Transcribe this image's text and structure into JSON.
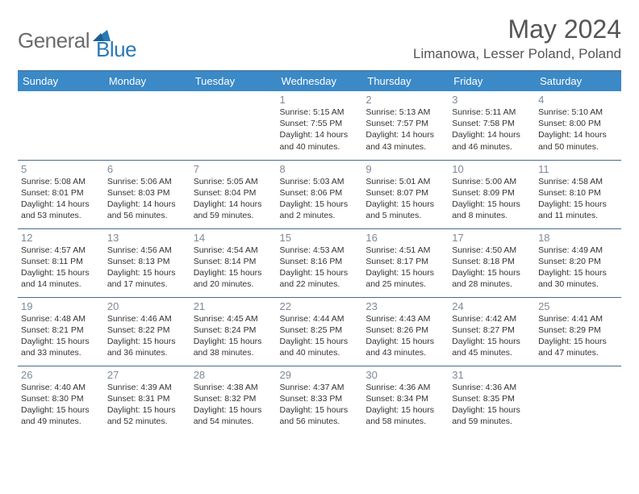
{
  "logo": {
    "text1": "General",
    "text2": "Blue"
  },
  "title": "May 2024",
  "location": "Limanowa, Lesser Poland, Poland",
  "colors": {
    "header_bg": "#3b89c7",
    "header_text": "#ffffff",
    "daynum": "#7d8a97",
    "border": "#4a6a8a",
    "logo_gray": "#6b6b6b",
    "logo_blue": "#2a7ab8",
    "title_color": "#555555",
    "body_text": "#333333",
    "page_bg": "#ffffff"
  },
  "daysOfWeek": [
    "Sunday",
    "Monday",
    "Tuesday",
    "Wednesday",
    "Thursday",
    "Friday",
    "Saturday"
  ],
  "weeks": [
    [
      null,
      null,
      null,
      {
        "n": "1",
        "sr": "5:15 AM",
        "ss": "7:55 PM",
        "dl": "14 hours and 40 minutes."
      },
      {
        "n": "2",
        "sr": "5:13 AM",
        "ss": "7:57 PM",
        "dl": "14 hours and 43 minutes."
      },
      {
        "n": "3",
        "sr": "5:11 AM",
        "ss": "7:58 PM",
        "dl": "14 hours and 46 minutes."
      },
      {
        "n": "4",
        "sr": "5:10 AM",
        "ss": "8:00 PM",
        "dl": "14 hours and 50 minutes."
      }
    ],
    [
      {
        "n": "5",
        "sr": "5:08 AM",
        "ss": "8:01 PM",
        "dl": "14 hours and 53 minutes."
      },
      {
        "n": "6",
        "sr": "5:06 AM",
        "ss": "8:03 PM",
        "dl": "14 hours and 56 minutes."
      },
      {
        "n": "7",
        "sr": "5:05 AM",
        "ss": "8:04 PM",
        "dl": "14 hours and 59 minutes."
      },
      {
        "n": "8",
        "sr": "5:03 AM",
        "ss": "8:06 PM",
        "dl": "15 hours and 2 minutes."
      },
      {
        "n": "9",
        "sr": "5:01 AM",
        "ss": "8:07 PM",
        "dl": "15 hours and 5 minutes."
      },
      {
        "n": "10",
        "sr": "5:00 AM",
        "ss": "8:09 PM",
        "dl": "15 hours and 8 minutes."
      },
      {
        "n": "11",
        "sr": "4:58 AM",
        "ss": "8:10 PM",
        "dl": "15 hours and 11 minutes."
      }
    ],
    [
      {
        "n": "12",
        "sr": "4:57 AM",
        "ss": "8:11 PM",
        "dl": "15 hours and 14 minutes."
      },
      {
        "n": "13",
        "sr": "4:56 AM",
        "ss": "8:13 PM",
        "dl": "15 hours and 17 minutes."
      },
      {
        "n": "14",
        "sr": "4:54 AM",
        "ss": "8:14 PM",
        "dl": "15 hours and 20 minutes."
      },
      {
        "n": "15",
        "sr": "4:53 AM",
        "ss": "8:16 PM",
        "dl": "15 hours and 22 minutes."
      },
      {
        "n": "16",
        "sr": "4:51 AM",
        "ss": "8:17 PM",
        "dl": "15 hours and 25 minutes."
      },
      {
        "n": "17",
        "sr": "4:50 AM",
        "ss": "8:18 PM",
        "dl": "15 hours and 28 minutes."
      },
      {
        "n": "18",
        "sr": "4:49 AM",
        "ss": "8:20 PM",
        "dl": "15 hours and 30 minutes."
      }
    ],
    [
      {
        "n": "19",
        "sr": "4:48 AM",
        "ss": "8:21 PM",
        "dl": "15 hours and 33 minutes."
      },
      {
        "n": "20",
        "sr": "4:46 AM",
        "ss": "8:22 PM",
        "dl": "15 hours and 36 minutes."
      },
      {
        "n": "21",
        "sr": "4:45 AM",
        "ss": "8:24 PM",
        "dl": "15 hours and 38 minutes."
      },
      {
        "n": "22",
        "sr": "4:44 AM",
        "ss": "8:25 PM",
        "dl": "15 hours and 40 minutes."
      },
      {
        "n": "23",
        "sr": "4:43 AM",
        "ss": "8:26 PM",
        "dl": "15 hours and 43 minutes."
      },
      {
        "n": "24",
        "sr": "4:42 AM",
        "ss": "8:27 PM",
        "dl": "15 hours and 45 minutes."
      },
      {
        "n": "25",
        "sr": "4:41 AM",
        "ss": "8:29 PM",
        "dl": "15 hours and 47 minutes."
      }
    ],
    [
      {
        "n": "26",
        "sr": "4:40 AM",
        "ss": "8:30 PM",
        "dl": "15 hours and 49 minutes."
      },
      {
        "n": "27",
        "sr": "4:39 AM",
        "ss": "8:31 PM",
        "dl": "15 hours and 52 minutes."
      },
      {
        "n": "28",
        "sr": "4:38 AM",
        "ss": "8:32 PM",
        "dl": "15 hours and 54 minutes."
      },
      {
        "n": "29",
        "sr": "4:37 AM",
        "ss": "8:33 PM",
        "dl": "15 hours and 56 minutes."
      },
      {
        "n": "30",
        "sr": "4:36 AM",
        "ss": "8:34 PM",
        "dl": "15 hours and 58 minutes."
      },
      {
        "n": "31",
        "sr": "4:36 AM",
        "ss": "8:35 PM",
        "dl": "15 hours and 59 minutes."
      },
      null
    ]
  ],
  "labels": {
    "sunrise": "Sunrise:",
    "sunset": "Sunset:",
    "daylight": "Daylight:"
  }
}
